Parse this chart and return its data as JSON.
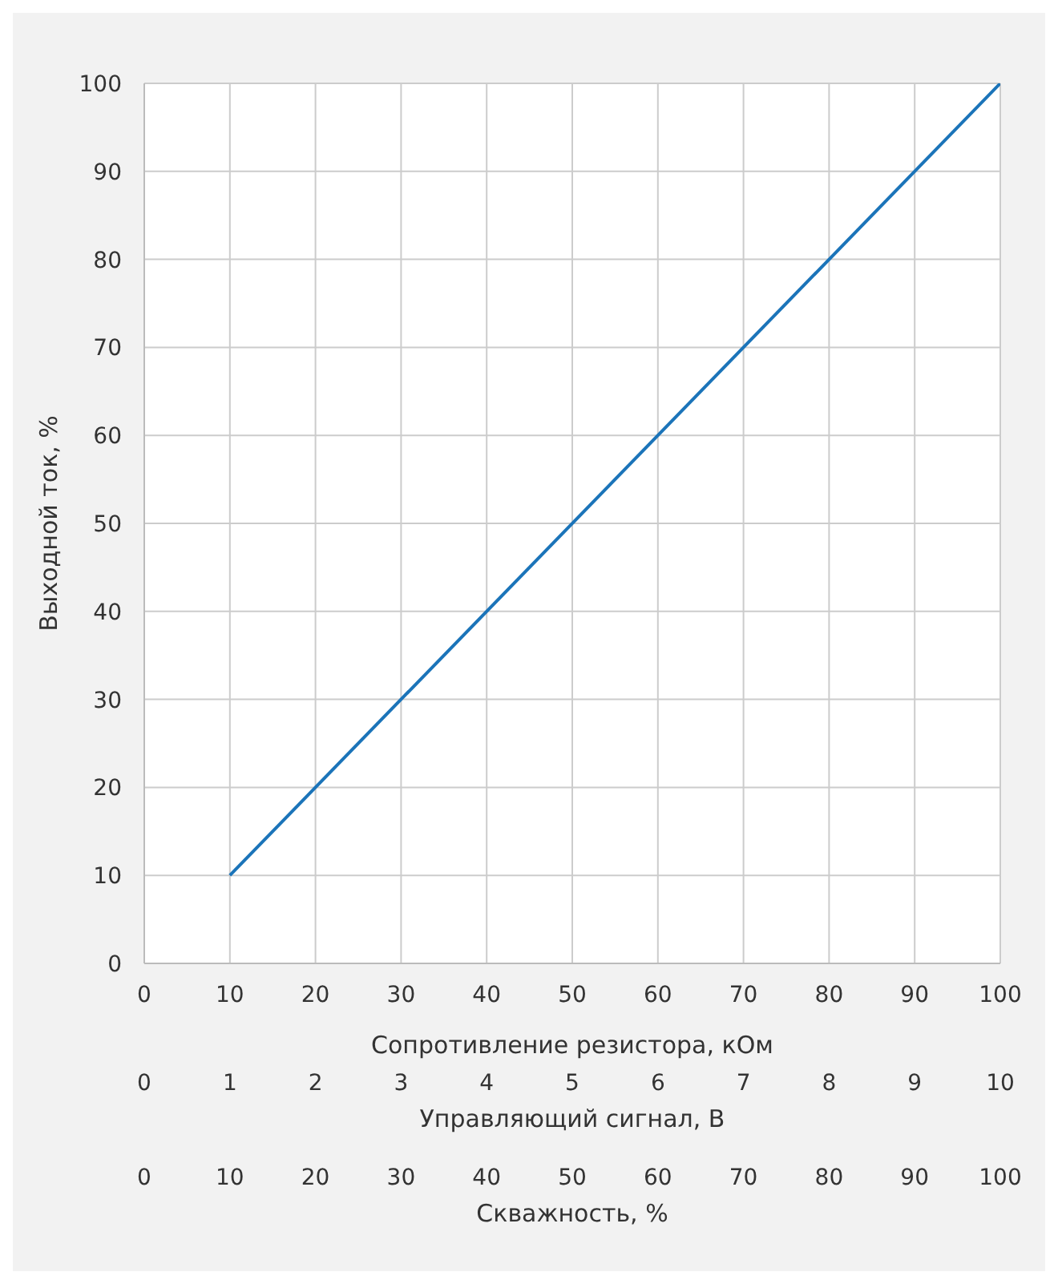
{
  "chart_data": {
    "type": "line",
    "xlabel": "Сопротивление резистора, кОм",
    "ylabel": "Выходной ток, %",
    "x2label": "Управляющий сигнал, В",
    "xlim": [
      0,
      100
    ],
    "xticks": [
      0,
      10,
      20,
      30,
      40,
      50,
      60,
      70,
      80,
      90,
      100
    ],
    "x2lim": [
      0,
      10
    ],
    "x2ticks": [
      0,
      1,
      2,
      3,
      4,
      5,
      6,
      7,
      8,
      9,
      10
    ],
    "ylim": [
      0,
      100
    ],
    "yticks": [
      0,
      10,
      20,
      30,
      40,
      50,
      60,
      70,
      80,
      90,
      100
    ],
    "grid": true,
    "annotations": [
      "0",
      "10",
      "20",
      "30",
      "40",
      "50",
      "60",
      "70",
      "80",
      "90",
      "100",
      "Скважность, %"
    ],
    "series": [
      {
        "color": "#1b74b9",
        "x": [
          10,
          100
        ],
        "values": [
          10,
          100
        ]
      }
    ]
  }
}
